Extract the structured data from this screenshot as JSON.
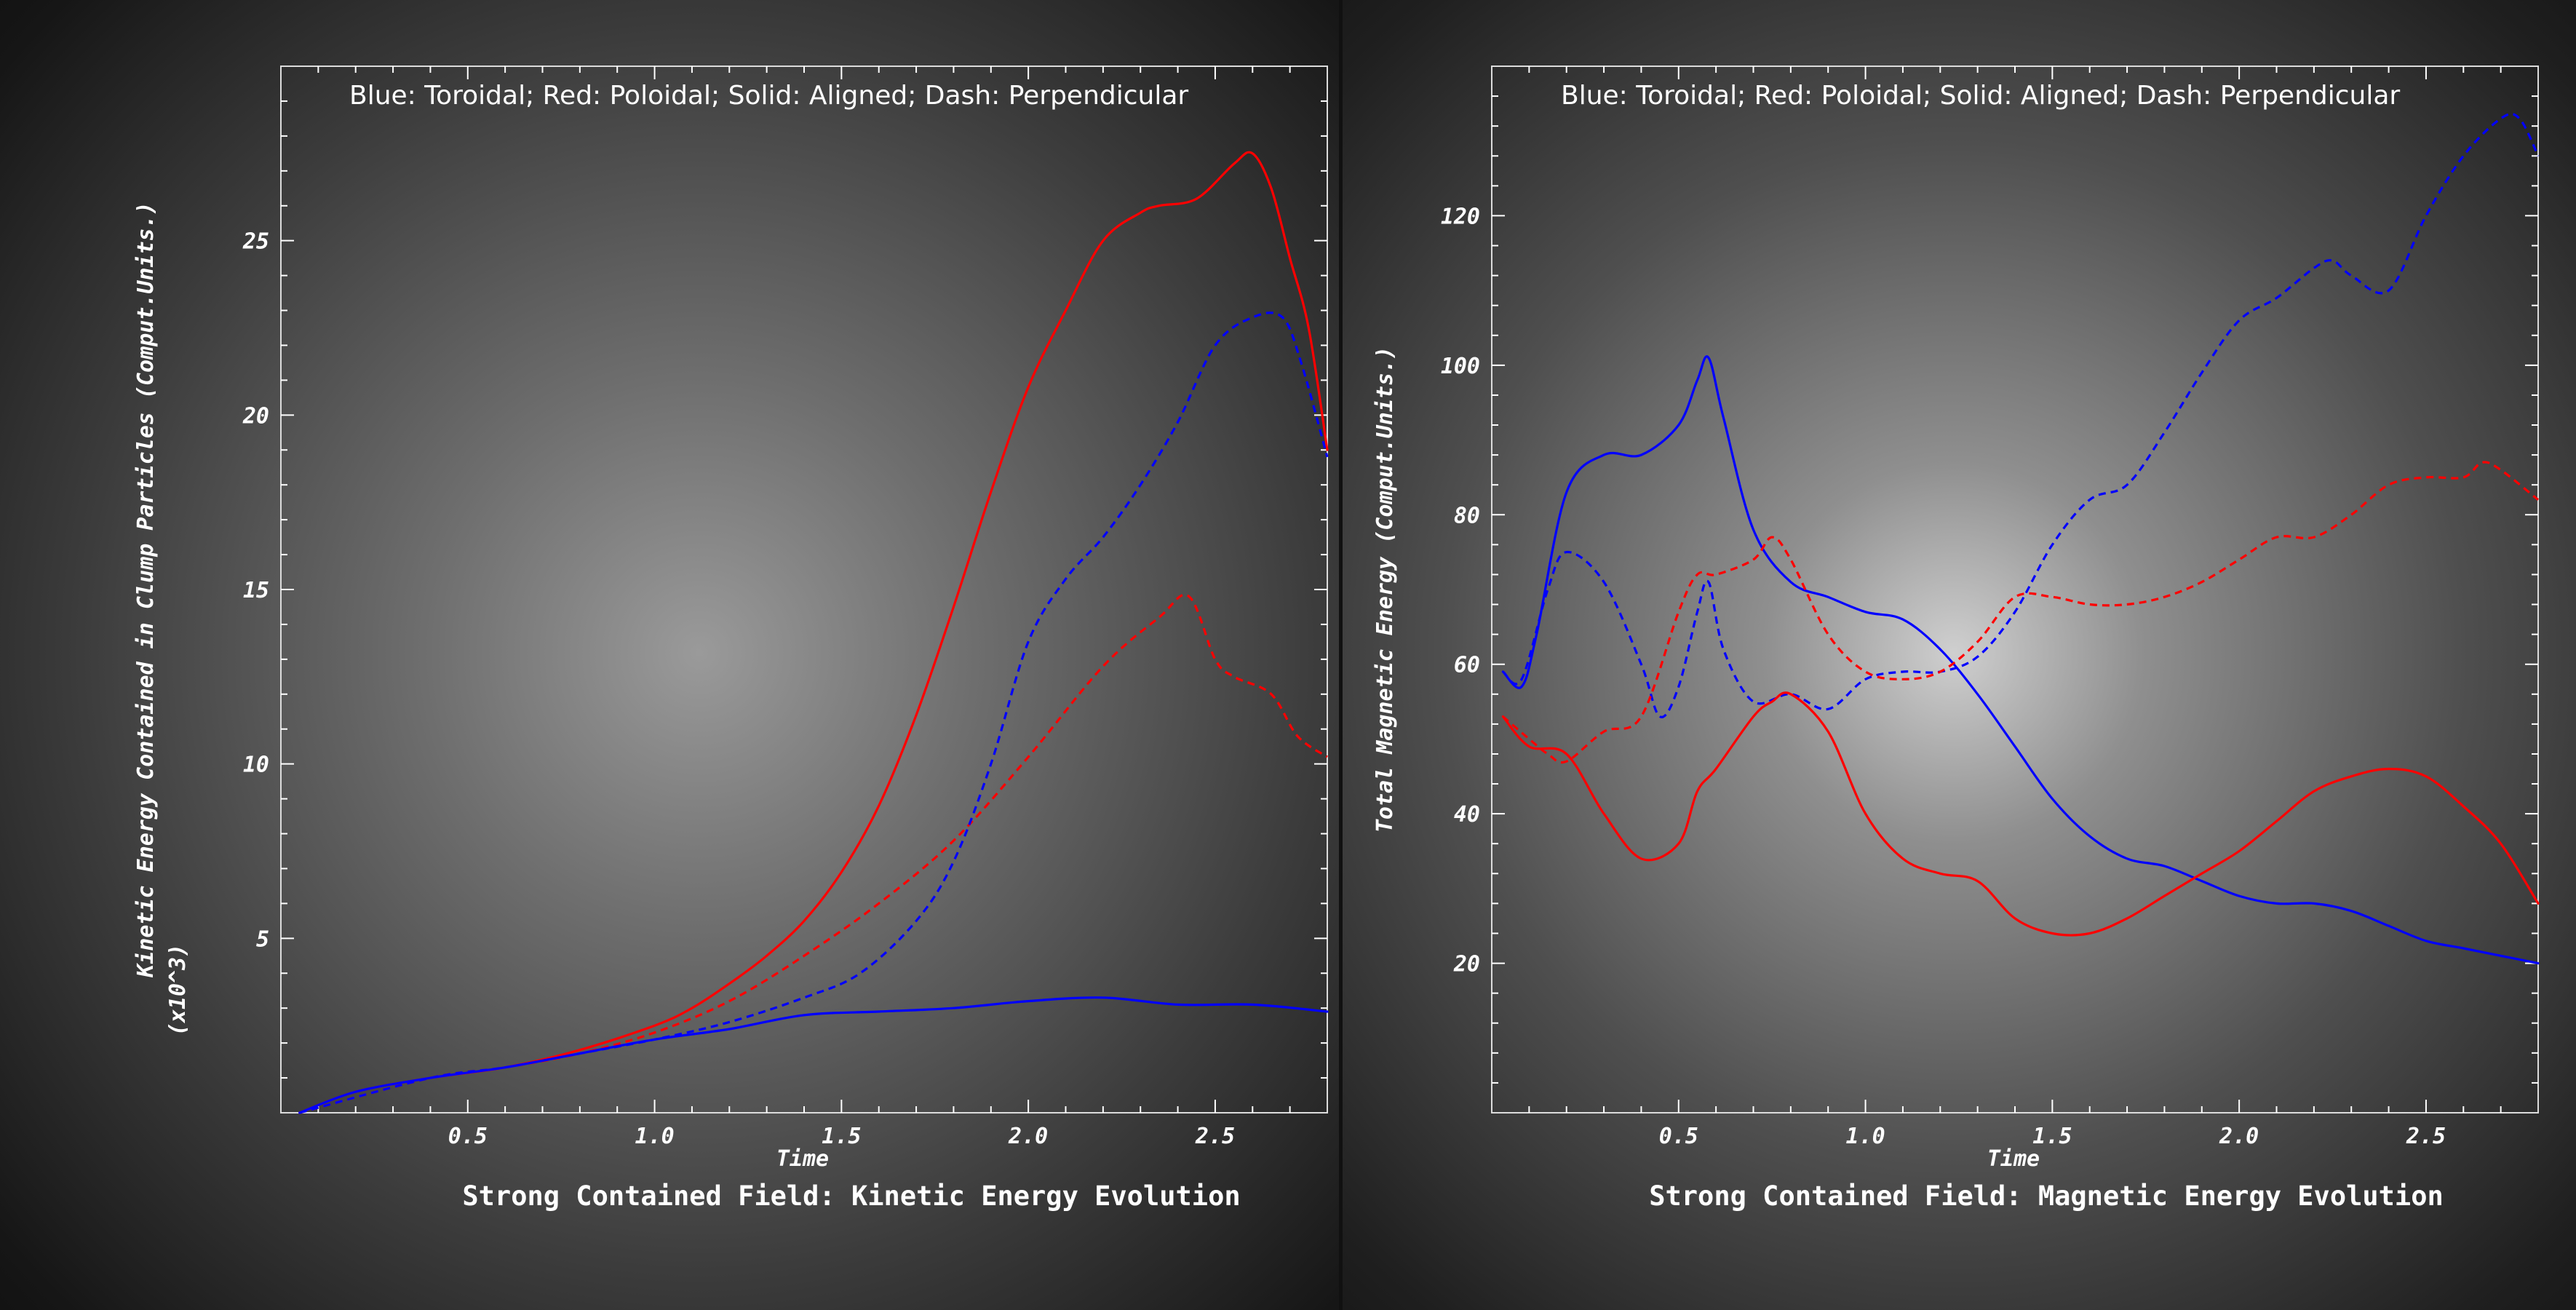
{
  "colors": {
    "toroidal": "#0000ff",
    "poloidal": "#ff0000",
    "axis": "#ffffff"
  },
  "chart_data": [
    {
      "type": "line",
      "title": "Strong Contained Field: Kinetic Energy Evolution",
      "xlabel": "Time",
      "ylabel": "Kinetic Energy Contained in Clump Particles (Comput.Units.)",
      "ylabel_scale": "(x10^3)",
      "annotation": "Blue: Toroidal; Red: Poloidal; Solid: Aligned; Dash: Perpendicular",
      "xlim": [
        0.0,
        2.8
      ],
      "ylim": [
        0,
        30
      ],
      "x_ticks": [
        0.5,
        1.0,
        1.5,
        2.0,
        2.5
      ],
      "x_tick_labels": [
        "0.5",
        "1.0",
        "1.5",
        "2.0",
        "2.5"
      ],
      "y_ticks": [
        5,
        10,
        15,
        20,
        25
      ],
      "y_tick_labels": [
        "5",
        "10",
        "15",
        "20",
        "25"
      ],
      "grid": false,
      "series": [
        {
          "color": "#ff0000",
          "style": "solid",
          "x": [
            0.05,
            0.2,
            0.4,
            0.6,
            0.8,
            1.0,
            1.1,
            1.2,
            1.3,
            1.4,
            1.5,
            1.6,
            1.7,
            1.8,
            1.9,
            2.0,
            2.1,
            2.2,
            2.3,
            2.35,
            2.45,
            2.55,
            2.6,
            2.65,
            2.7,
            2.75,
            2.8
          ],
          "y": [
            0.0,
            0.6,
            1.0,
            1.3,
            1.8,
            2.5,
            3.0,
            3.7,
            4.5,
            5.5,
            6.9,
            8.8,
            11.4,
            14.5,
            17.8,
            20.8,
            23.0,
            25.0,
            25.8,
            26.0,
            26.2,
            27.2,
            27.5,
            26.5,
            24.5,
            22.5,
            19.0
          ]
        },
        {
          "color": "#ff0000",
          "style": "dashed",
          "x": [
            0.05,
            0.4,
            0.6,
            0.8,
            1.0,
            1.2,
            1.4,
            1.6,
            1.8,
            2.0,
            2.2,
            2.35,
            2.43,
            2.5,
            2.55,
            2.65,
            2.72,
            2.8
          ],
          "y": [
            0.0,
            1.0,
            1.3,
            1.7,
            2.3,
            3.2,
            4.5,
            6.0,
            7.8,
            10.2,
            12.8,
            14.2,
            14.8,
            13.0,
            12.5,
            12.0,
            10.8,
            10.2
          ]
        },
        {
          "color": "#0000ff",
          "style": "dashed",
          "x": [
            0.05,
            0.4,
            0.6,
            0.8,
            1.0,
            1.2,
            1.4,
            1.55,
            1.7,
            1.8,
            1.9,
            2.0,
            2.1,
            2.2,
            2.3,
            2.4,
            2.5,
            2.6,
            2.68,
            2.73,
            2.8
          ],
          "y": [
            0.0,
            1.0,
            1.3,
            1.7,
            2.1,
            2.6,
            3.3,
            4.0,
            5.5,
            7.2,
            10.0,
            13.5,
            15.3,
            16.5,
            18.0,
            19.8,
            22.0,
            22.8,
            22.8,
            21.5,
            18.8
          ]
        },
        {
          "color": "#0000ff",
          "style": "solid",
          "x": [
            0.05,
            0.2,
            0.4,
            0.6,
            0.8,
            1.0,
            1.2,
            1.4,
            1.6,
            1.8,
            2.0,
            2.2,
            2.4,
            2.6,
            2.8
          ],
          "y": [
            0.0,
            0.6,
            1.0,
            1.3,
            1.7,
            2.1,
            2.4,
            2.8,
            2.9,
            3.0,
            3.2,
            3.3,
            3.1,
            3.1,
            2.9
          ]
        }
      ]
    },
    {
      "type": "line",
      "title": "Strong Contained Field: Magnetic Energy Evolution",
      "xlabel": "Time",
      "ylabel": "Total Magnetic Energy (Comput.Units.)",
      "annotation": "Blue: Toroidal; Red: Poloidal; Solid: Aligned; Dash: Perpendicular",
      "xlim": [
        0.0,
        2.8
      ],
      "ylim": [
        0,
        140
      ],
      "x_ticks": [
        0.5,
        1.0,
        1.5,
        2.0,
        2.5
      ],
      "x_tick_labels": [
        "0.5",
        "1.0",
        "1.5",
        "2.0",
        "2.5"
      ],
      "y_ticks": [
        20,
        40,
        60,
        80,
        100,
        120
      ],
      "y_tick_labels": [
        "20",
        "40",
        "60",
        "80",
        "100",
        "120"
      ],
      "grid": false,
      "series": [
        {
          "color": "#0000ff",
          "style": "solid",
          "x": [
            0.03,
            0.08,
            0.12,
            0.2,
            0.3,
            0.4,
            0.5,
            0.55,
            0.58,
            0.62,
            0.7,
            0.8,
            0.9,
            1.0,
            1.1,
            1.2,
            1.3,
            1.4,
            1.5,
            1.6,
            1.7,
            1.8,
            1.9,
            2.0,
            2.1,
            2.2,
            2.3,
            2.4,
            2.5,
            2.6,
            2.7,
            2.8
          ],
          "y": [
            59,
            57,
            64,
            83,
            88,
            88,
            92,
            98,
            101,
            93,
            78,
            71,
            69,
            67,
            66,
            62,
            56,
            49,
            42,
            37,
            34,
            33,
            31,
            29,
            28,
            28,
            27,
            25,
            23,
            22,
            21,
            20
          ]
        },
        {
          "color": "#0000ff",
          "style": "dashed",
          "x": [
            0.03,
            0.08,
            0.15,
            0.2,
            0.3,
            0.4,
            0.45,
            0.5,
            0.55,
            0.58,
            0.62,
            0.7,
            0.8,
            0.9,
            1.0,
            1.1,
            1.2,
            1.3,
            1.4,
            1.5,
            1.6,
            1.7,
            1.8,
            1.9,
            2.0,
            2.1,
            2.2,
            2.25,
            2.3,
            2.4,
            2.5,
            2.6,
            2.7,
            2.75,
            2.8
          ],
          "y": [
            59,
            58,
            70,
            75,
            71,
            60,
            53,
            57,
            67,
            71,
            62,
            55,
            56,
            54,
            58,
            59,
            59,
            61,
            67,
            76,
            82,
            84,
            91,
            99,
            106,
            109,
            113,
            114,
            112,
            110,
            120,
            128,
            133,
            133,
            128
          ]
        },
        {
          "color": "#ff0000",
          "style": "dashed",
          "x": [
            0.03,
            0.1,
            0.15,
            0.2,
            0.3,
            0.4,
            0.5,
            0.55,
            0.6,
            0.7,
            0.75,
            0.8,
            0.9,
            1.0,
            1.1,
            1.2,
            1.3,
            1.4,
            1.5,
            1.6,
            1.7,
            1.8,
            1.9,
            2.0,
            2.1,
            2.2,
            2.3,
            2.4,
            2.5,
            2.6,
            2.65,
            2.7,
            2.8
          ],
          "y": [
            53,
            50,
            48,
            47,
            51,
            53,
            67,
            72,
            72,
            74,
            77,
            74,
            64,
            59,
            58,
            59,
            63,
            69,
            69,
            68,
            68,
            69,
            71,
            74,
            77,
            77,
            80,
            84,
            85,
            85,
            87,
            86,
            82
          ]
        },
        {
          "color": "#ff0000",
          "style": "solid",
          "x": [
            0.03,
            0.1,
            0.2,
            0.3,
            0.4,
            0.5,
            0.55,
            0.6,
            0.7,
            0.75,
            0.8,
            0.9,
            1.0,
            1.1,
            1.2,
            1.3,
            1.4,
            1.5,
            1.6,
            1.7,
            1.8,
            1.9,
            2.0,
            2.1,
            2.2,
            2.3,
            2.4,
            2.5,
            2.6,
            2.7,
            2.8
          ],
          "y": [
            53,
            49,
            48,
            40,
            34,
            36,
            43,
            46,
            53,
            55,
            56,
            51,
            40,
            34,
            32,
            31,
            26,
            24,
            24,
            26,
            29,
            32,
            35,
            39,
            43,
            45,
            46,
            45,
            41,
            36,
            28
          ]
        }
      ]
    }
  ]
}
